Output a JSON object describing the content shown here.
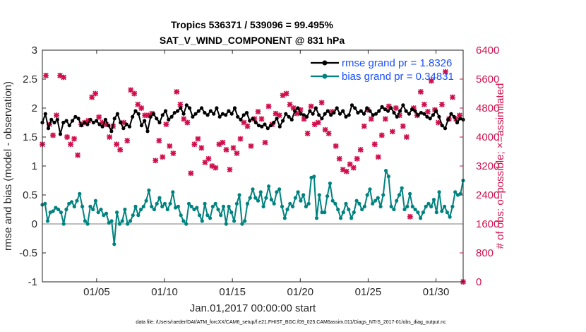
{
  "chart_data": {
    "type": "line",
    "title": "Tropics 536371 / 539096 = 99.495%",
    "subtitle": "SAT_V_WIND_COMPONENT @ 831 hPa",
    "xlabel": "Jan.01,2017 00:00:00 start",
    "ylabel_left": "rmse and bias (model - observation)",
    "ylabel_right": "# of obs: o=possible; ×=assimilated",
    "x_range": [
      1,
      32
    ],
    "x_ticks": [
      "01/05",
      "01/10",
      "01/15",
      "01/20",
      "01/25",
      "01/30"
    ],
    "x_tick_days": [
      5,
      10,
      15,
      20,
      25,
      30
    ],
    "ylim_left": [
      -1,
      3
    ],
    "yticks_left": [
      "-1",
      "-0.5",
      "0",
      "0.5",
      "1",
      "1.5",
      "2",
      "2.5",
      "3"
    ],
    "ylim_right": [
      0,
      6400
    ],
    "yticks_right": [
      "0",
      "800",
      "1600",
      "2400",
      "3200",
      "4000",
      "4800",
      "5600",
      "6400"
    ],
    "reference_line": 0,
    "footnote": "data file: /Users/raeder/DAI/ATM_forcXX/CAM6_setup/f.e21.FHIST_BGC.f09_025.CAM6assim.011/Diags_NTrS_2017-01/obs_diag_output.nc",
    "series": [
      {
        "name": "rmse grand pr = 1.8326",
        "axis": "left",
        "color": "#000000",
        "marker": "dot",
        "values": [
          1.75,
          1.9,
          1.65,
          1.8,
          1.75,
          1.8,
          1.55,
          1.75,
          1.78,
          1.7,
          1.78,
          1.85,
          1.82,
          1.7,
          1.75,
          1.72,
          1.8,
          1.75,
          1.78,
          1.72,
          1.68,
          1.8,
          1.7,
          1.6,
          1.82,
          1.9,
          1.75,
          1.65,
          1.72,
          1.68,
          1.85,
          1.95,
          1.9,
          1.7,
          1.78,
          1.6,
          1.85,
          1.9,
          1.82,
          1.75,
          1.88,
          1.95,
          1.8,
          1.85,
          1.92,
          1.95,
          2.0,
          1.9,
          2.05,
          2.0,
          1.85,
          1.9,
          1.95,
          2.0,
          1.92,
          1.88,
          1.95,
          1.9,
          2.0,
          1.85,
          1.9,
          1.88,
          1.95,
          1.9,
          2.0,
          1.85,
          1.8,
          1.88,
          1.92,
          1.78,
          1.82,
          1.75,
          1.7,
          1.68,
          1.72,
          1.65,
          1.7,
          1.75,
          1.82,
          1.68,
          1.78,
          1.9,
          1.85,
          1.8,
          1.95,
          2.0,
          1.9,
          1.88,
          1.85,
          1.95,
          1.9,
          2.0,
          1.88,
          1.82,
          1.9,
          1.95,
          1.88,
          1.92,
          2.0,
          1.9,
          1.95,
          1.85,
          1.88,
          2.05,
          2.0,
          1.92,
          1.95,
          1.9,
          2.0,
          1.95,
          1.88,
          1.9,
          1.95,
          2.02,
          1.98,
          1.95,
          2.0,
          1.92,
          1.85,
          1.95,
          2.05,
          1.95,
          1.9,
          1.98,
          1.95,
          1.88,
          1.92,
          1.9,
          1.85,
          1.82,
          1.88,
          1.95,
          1.85,
          1.7,
          1.65,
          1.8,
          1.9,
          1.85,
          1.75,
          1.82,
          1.8
        ]
      },
      {
        "name": "bias grand pr = 0.34831",
        "axis": "left",
        "color": "#00827f",
        "marker": "dot",
        "values": [
          0.33,
          0.35,
          0.05,
          0.2,
          0.22,
          0.28,
          0.25,
          0.2,
          0.0,
          0.25,
          0.35,
          0.38,
          0.3,
          0.4,
          0.52,
          0.3,
          0.05,
          0.0,
          0.3,
          0.25,
          0.4,
          0.2,
          0.25,
          0.15,
          0.18,
          0.02,
          0.05,
          -0.35,
          0.2,
          0.0,
          0.05,
          0.25,
          0.0,
          0.05,
          0.15,
          0.3,
          0.15,
          0.25,
          0.3,
          0.4,
          0.58,
          0.3,
          0.25,
          0.35,
          0.45,
          0.3,
          0.35,
          0.25,
          0.35,
          0.55,
          0.28,
          0.3,
          0.15,
          0.05,
          0.0,
          0.35,
          0.3,
          0.25,
          0.28,
          0.15,
          0.05,
          0.35,
          0.15,
          0.1,
          0.3,
          0.35,
          0.25,
          0.15,
          0.3,
          0.0,
          0.3,
          0.2,
          0.05,
          0.35,
          0.5,
          0.0,
          0.05,
          0.35,
          0.45,
          0.6,
          0.45,
          0.4,
          0.55,
          0.3,
          0.45,
          0.65,
          0.42,
          0.35,
          0.55,
          0.6,
          0.3,
          0.1,
          0.25,
          0.35,
          0.3,
          0.45,
          0.55,
          0.4,
          0.5,
          0.3,
          0.35,
          0.8,
          0.82,
          0.1,
          0.5,
          0.2,
          0.2,
          0.48,
          0.7,
          0.4,
          0.35,
          0.25,
          0.1,
          0.2,
          0.35,
          0.25,
          0.1,
          0.2,
          0.4,
          0.35,
          0.25,
          0.3,
          0.5,
          0.6,
          0.35,
          0.4,
          0.45,
          0.3,
          0.5,
          0.92,
          0.82,
          0.3,
          0.25,
          0.4,
          0.5,
          0.62,
          0.25,
          0.3,
          0.52,
          0.3,
          0.25,
          0.2,
          0.1,
          0.2,
          0.3,
          0.35,
          0.3,
          0.42,
          0.2,
          0.55,
          0.22,
          0.3,
          0.2,
          0.12,
          0.3,
          0.55,
          0.5,
          0.52,
          0.75
        ]
      },
      {
        "name": "# of obs assimilated",
        "axis": "right",
        "color": "#d0104c",
        "marker": "x",
        "values": [
          3800,
          5700,
          4350,
          4050,
          4600,
          5700,
          5650,
          4000,
          3800,
          3950,
          3500,
          4350,
          4400,
          4450,
          5100,
          5200,
          4550,
          4400,
          4350,
          4000,
          4300,
          3800,
          3650,
          4400,
          3900,
          5300,
          5200,
          4900,
          4800,
          4600,
          4600,
          4650,
          3350,
          3900,
          3450,
          4350,
          3750,
          3550,
          5250,
          4900,
          4500,
          4400,
          3000,
          3800,
          3950,
          3700,
          3300,
          3400,
          3200,
          3150,
          3800,
          3850,
          3650,
          3100,
          3700,
          3550,
          3950,
          4400,
          4300,
          3750,
          4500,
          4700,
          4500,
          3850,
          4850,
          4350,
          4650,
          4600,
          5150,
          5200,
          4900,
          4800,
          4650,
          4750,
          4500,
          4100,
          4850,
          4350,
          4400,
          4950,
          4200,
          4100,
          4700,
          3750,
          3400,
          3100,
          3050,
          3250,
          3150,
          3400,
          3650,
          4300,
          4750,
          4500,
          3800,
          3450,
          4050,
          4500,
          4850,
          4150,
          4800,
          4600,
          4300,
          4000,
          1800,
          4800,
          4600,
          5250,
          4900,
          4700,
          5550,
          4750,
          4400,
          4900,
          5800,
          4500,
          5100,
          4500,
          4600,
          0
        ]
      }
    ]
  }
}
